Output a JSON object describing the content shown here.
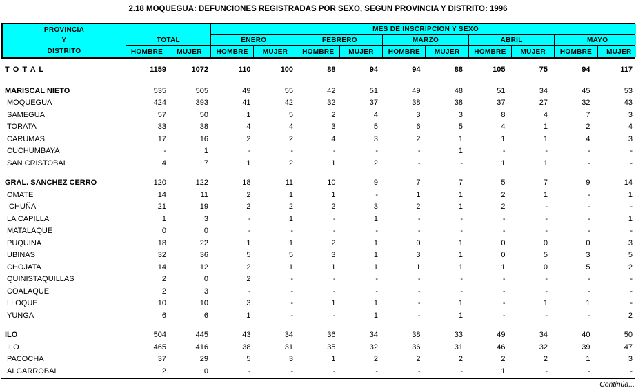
{
  "title": "2.18 MOQUEGUA: DEFUNCIONES REGISTRADAS POR SEXO, SEGUN PROVINCIA Y DISTRITO: 1996",
  "colors": {
    "header_bg": "#00ffff",
    "border": "#000000",
    "text": "#000000",
    "page_bg": "#ffffff"
  },
  "header": {
    "col1_lines": [
      "PROVINCIA",
      "Y",
      "DISTRITO"
    ],
    "total_label": "TOTAL",
    "mes_banner": "MES DE INSCRIPCION Y SEXO",
    "months": [
      "ENERO",
      "FEBRERO",
      "MARZO",
      "ABRIL",
      "MAYO"
    ],
    "hombre": "HOMBRE",
    "mujer": "MUJER"
  },
  "rows": [
    {
      "label": "T O T A L",
      "style": "total",
      "gap": "",
      "values": [
        "1159",
        "1072",
        "110",
        "100",
        "88",
        "94",
        "94",
        "88",
        "105",
        "75",
        "94",
        "117"
      ]
    },
    {
      "label": "MARISCAL NIETO",
      "style": "section",
      "gap": "lg",
      "values": [
        "535",
        "505",
        "49",
        "55",
        "42",
        "51",
        "49",
        "48",
        "51",
        "34",
        "45",
        "53"
      ]
    },
    {
      "label": "MOQUEGUA",
      "style": "district",
      "gap": "",
      "values": [
        "424",
        "393",
        "41",
        "42",
        "32",
        "37",
        "38",
        "38",
        "37",
        "27",
        "32",
        "43"
      ]
    },
    {
      "label": "SAMEGUA",
      "style": "district",
      "gap": "",
      "values": [
        "57",
        "50",
        "1",
        "5",
        "2",
        "4",
        "3",
        "3",
        "8",
        "4",
        "7",
        "3"
      ]
    },
    {
      "label": "TORATA",
      "style": "district",
      "gap": "",
      "values": [
        "33",
        "38",
        "4",
        "4",
        "3",
        "5",
        "6",
        "5",
        "4",
        "1",
        "2",
        "4"
      ]
    },
    {
      "label": "CARUMAS",
      "style": "district",
      "gap": "",
      "values": [
        "17",
        "16",
        "2",
        "2",
        "4",
        "3",
        "2",
        "1",
        "1",
        "1",
        "4",
        "3"
      ]
    },
    {
      "label": "CUCHUMBAYA",
      "style": "district",
      "gap": "",
      "values": [
        "-",
        "1",
        "-",
        "-",
        "-",
        "-",
        "-",
        "1",
        "-",
        "-",
        "-",
        "-"
      ]
    },
    {
      "label": "SAN CRISTOBAL",
      "style": "district",
      "gap": "",
      "values": [
        "4",
        "7",
        "1",
        "2",
        "1",
        "2",
        "-",
        "-",
        "1",
        "1",
        "-",
        "-"
      ]
    },
    {
      "label": "GRAL. SANCHEZ CERRO",
      "style": "section",
      "gap": "md",
      "values": [
        "120",
        "122",
        "18",
        "11",
        "10",
        "9",
        "7",
        "7",
        "5",
        "7",
        "9",
        "14"
      ]
    },
    {
      "label": "OMATE",
      "style": "district",
      "gap": "",
      "values": [
        "14",
        "11",
        "2",
        "1",
        "1",
        "-",
        "1",
        "1",
        "2",
        "1",
        "-",
        "1"
      ]
    },
    {
      "label": "ICHUÑA",
      "style": "district",
      "gap": "",
      "values": [
        "21",
        "19",
        "2",
        "2",
        "2",
        "3",
        "2",
        "1",
        "2",
        "-",
        "-",
        "-"
      ]
    },
    {
      "label": "LA CAPILLA",
      "style": "district",
      "gap": "",
      "values": [
        "1",
        "3",
        "-",
        "1",
        "-",
        "1",
        "-",
        "-",
        "-",
        "-",
        "-",
        "1"
      ]
    },
    {
      "label": "MATALAQUE",
      "style": "district",
      "gap": "",
      "values": [
        "0",
        "0",
        "-",
        "-",
        "-",
        "-",
        "-",
        "-",
        "-",
        "-",
        "-",
        "-"
      ]
    },
    {
      "label": "PUQUINA",
      "style": "district",
      "gap": "",
      "values": [
        "18",
        "22",
        "1",
        "1",
        "2",
        "1",
        "0",
        "1",
        "0",
        "0",
        "0",
        "3"
      ]
    },
    {
      "label": "UBINAS",
      "style": "district",
      "gap": "",
      "values": [
        "32",
        "36",
        "5",
        "5",
        "3",
        "1",
        "3",
        "1",
        "0",
        "5",
        "3",
        "5"
      ]
    },
    {
      "label": "CHOJATA",
      "style": "district",
      "gap": "",
      "values": [
        "14",
        "12",
        "2",
        "1",
        "1",
        "1",
        "1",
        "1",
        "1",
        "0",
        "5",
        "2"
      ]
    },
    {
      "label": "QUINISTAQUILLAS",
      "style": "district",
      "gap": "",
      "values": [
        "2",
        "0",
        "2",
        "-",
        "-",
        "-",
        "-",
        "-",
        "-",
        "-",
        "-",
        "-"
      ]
    },
    {
      "label": "COALAQUE",
      "style": "district",
      "gap": "",
      "values": [
        "2",
        "3",
        "-",
        "-",
        "-",
        "-",
        "-",
        "-",
        "-",
        "-",
        "-",
        "-"
      ]
    },
    {
      "label": "LLOQUE",
      "style": "district",
      "gap": "",
      "values": [
        "10",
        "10",
        "3",
        "-",
        "1",
        "1",
        "-",
        "1",
        "-",
        "1",
        "1",
        "-"
      ]
    },
    {
      "label": "YUNGA",
      "style": "district",
      "gap": "",
      "values": [
        "6",
        "6",
        "1",
        "-",
        "-",
        "1",
        "-",
        "1",
        "-",
        "-",
        "-",
        "2"
      ]
    },
    {
      "label": "ILO",
      "style": "section",
      "gap": "md",
      "values": [
        "504",
        "445",
        "43",
        "34",
        "36",
        "34",
        "38",
        "33",
        "49",
        "34",
        "40",
        "50"
      ]
    },
    {
      "label": "ILO",
      "style": "district",
      "gap": "",
      "values": [
        "465",
        "416",
        "38",
        "31",
        "35",
        "32",
        "36",
        "31",
        "46",
        "32",
        "39",
        "47"
      ]
    },
    {
      "label": "PACOCHA",
      "style": "district",
      "gap": "",
      "values": [
        "37",
        "29",
        "5",
        "3",
        "1",
        "2",
        "2",
        "2",
        "2",
        "2",
        "1",
        "3"
      ]
    },
    {
      "label": "ALGARROBAL",
      "style": "district",
      "gap": "",
      "values": [
        "2",
        "0",
        "-",
        "-",
        "-",
        "-",
        "-",
        "-",
        "1",
        "-",
        "-",
        "-"
      ]
    }
  ],
  "footer": {
    "continues": "Continúa..."
  }
}
